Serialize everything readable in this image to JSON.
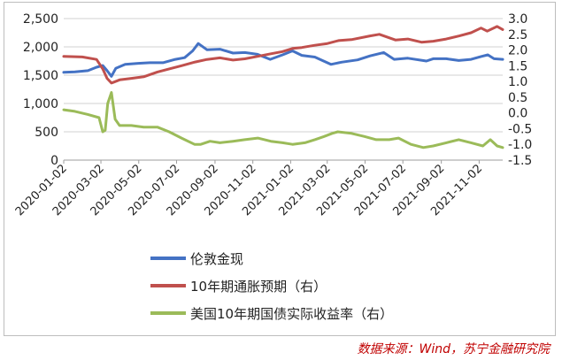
{
  "chart_data": {
    "type": "line",
    "title": "",
    "xlabel": "",
    "ylabel_left": "",
    "ylabel_right": "",
    "x_range": [
      "2020-01-02",
      "2021-12-10"
    ],
    "x_ticks": [
      "2020-01-02",
      "2020-03-02",
      "2020-05-02",
      "2020-07-02",
      "2020-09-02",
      "2020-11-02",
      "2021-01-02",
      "2021-03-02",
      "2021-05-02",
      "2021-07-02",
      "2021-09-02",
      "2021-11-02"
    ],
    "y_left": {
      "ylim": [
        0,
        2500
      ],
      "ticks": [
        "0",
        "500",
        "1,000",
        "1,500",
        "2,000",
        "2,500"
      ],
      "grid": true
    },
    "y_right": {
      "ylim": [
        -1.5,
        3.0
      ],
      "ticks": [
        "3.0",
        "2.5",
        "2.0",
        "1.5",
        "1.0",
        "0.5",
        "0.0",
        "-0.5",
        "-1.0",
        "-1.5"
      ]
    },
    "legend_position": "bottom-left",
    "series": [
      {
        "name": "伦敦金现",
        "axis": "left",
        "color": "#4472c4",
        "x": [
          "2020-01-02",
          "2020-01-20",
          "2020-02-10",
          "2020-02-24",
          "2020-03-05",
          "2020-03-12",
          "2020-03-19",
          "2020-03-26",
          "2020-04-10",
          "2020-05-01",
          "2020-05-20",
          "2020-06-10",
          "2020-06-30",
          "2020-07-15",
          "2020-07-28",
          "2020-08-06",
          "2020-08-20",
          "2020-09-10",
          "2020-10-01",
          "2020-10-20",
          "2020-11-09",
          "2020-11-30",
          "2020-12-20",
          "2021-01-05",
          "2021-01-20",
          "2021-02-10",
          "2021-03-08",
          "2021-03-25",
          "2021-04-20",
          "2021-05-10",
          "2021-06-01",
          "2021-06-18",
          "2021-07-10",
          "2021-08-09",
          "2021-08-20",
          "2021-09-10",
          "2021-09-30",
          "2021-10-20",
          "2021-11-05",
          "2021-11-16",
          "2021-11-26",
          "2021-12-10"
        ],
        "values": [
          1550,
          1560,
          1580,
          1640,
          1670,
          1580,
          1480,
          1620,
          1690,
          1710,
          1720,
          1720,
          1780,
          1810,
          1930,
          2060,
          1950,
          1960,
          1890,
          1900,
          1870,
          1780,
          1860,
          1930,
          1850,
          1820,
          1690,
          1730,
          1770,
          1840,
          1900,
          1780,
          1800,
          1750,
          1790,
          1790,
          1760,
          1780,
          1830,
          1860,
          1790,
          1780
        ]
      },
      {
        "name": "10年期通胀预期（右）",
        "axis": "right",
        "color": "#c0504d",
        "x": [
          "2020-01-02",
          "2020-02-01",
          "2020-02-24",
          "2020-03-05",
          "2020-03-12",
          "2020-03-19",
          "2020-04-01",
          "2020-04-20",
          "2020-05-10",
          "2020-06-01",
          "2020-06-20",
          "2020-07-10",
          "2020-08-01",
          "2020-08-20",
          "2020-09-10",
          "2020-10-01",
          "2020-10-20",
          "2020-11-10",
          "2020-12-01",
          "2020-12-20",
          "2021-01-05",
          "2021-01-20",
          "2021-02-10",
          "2021-03-01",
          "2021-03-20",
          "2021-04-10",
          "2021-05-10",
          "2021-05-25",
          "2021-06-20",
          "2021-07-10",
          "2021-08-01",
          "2021-08-20",
          "2021-09-10",
          "2021-10-01",
          "2021-10-20",
          "2021-11-05",
          "2021-11-15",
          "2021-12-01",
          "2021-12-10"
        ],
        "values": [
          1.8,
          1.78,
          1.7,
          1.4,
          1.1,
          0.95,
          1.05,
          1.1,
          1.15,
          1.3,
          1.4,
          1.5,
          1.62,
          1.7,
          1.75,
          1.68,
          1.72,
          1.8,
          1.88,
          1.95,
          2.05,
          2.08,
          2.15,
          2.2,
          2.3,
          2.33,
          2.45,
          2.5,
          2.32,
          2.35,
          2.25,
          2.28,
          2.35,
          2.45,
          2.55,
          2.7,
          2.6,
          2.75,
          2.65
        ]
      },
      {
        "name": "美国10年期国债实际收益率（右）",
        "axis": "right",
        "color": "#9bbb59",
        "x": [
          "2020-01-02",
          "2020-01-20",
          "2020-02-10",
          "2020-02-28",
          "2020-03-05",
          "2020-03-09",
          "2020-03-13",
          "2020-03-19",
          "2020-03-25",
          "2020-04-01",
          "2020-04-20",
          "2020-05-10",
          "2020-06-01",
          "2020-06-20",
          "2020-07-10",
          "2020-07-31",
          "2020-08-10",
          "2020-08-25",
          "2020-09-10",
          "2020-10-01",
          "2020-10-20",
          "2020-11-10",
          "2020-12-01",
          "2020-12-20",
          "2021-01-05",
          "2021-01-25",
          "2021-02-10",
          "2021-02-25",
          "2021-03-10",
          "2021-03-19",
          "2021-04-10",
          "2021-05-01",
          "2021-05-20",
          "2021-06-10",
          "2021-06-25",
          "2021-07-15",
          "2021-08-04",
          "2021-08-20",
          "2021-09-10",
          "2021-09-30",
          "2021-10-20",
          "2021-11-08",
          "2021-11-20",
          "2021-12-01",
          "2021-12-10"
        ],
        "values": [
          0.1,
          0.05,
          -0.05,
          -0.15,
          -0.6,
          -0.55,
          0.3,
          0.65,
          -0.2,
          -0.4,
          -0.4,
          -0.45,
          -0.45,
          -0.6,
          -0.8,
          -1.0,
          -1.0,
          -0.9,
          -0.95,
          -0.9,
          -0.85,
          -0.8,
          -0.9,
          -0.95,
          -1.0,
          -0.95,
          -0.85,
          -0.75,
          -0.65,
          -0.6,
          -0.65,
          -0.75,
          -0.85,
          -0.85,
          -0.8,
          -1.0,
          -1.1,
          -1.05,
          -0.95,
          -0.85,
          -0.95,
          -1.05,
          -0.85,
          -1.05,
          -1.1
        ]
      }
    ]
  },
  "source_note": "数据来源：Wind，苏宁金融研究院"
}
